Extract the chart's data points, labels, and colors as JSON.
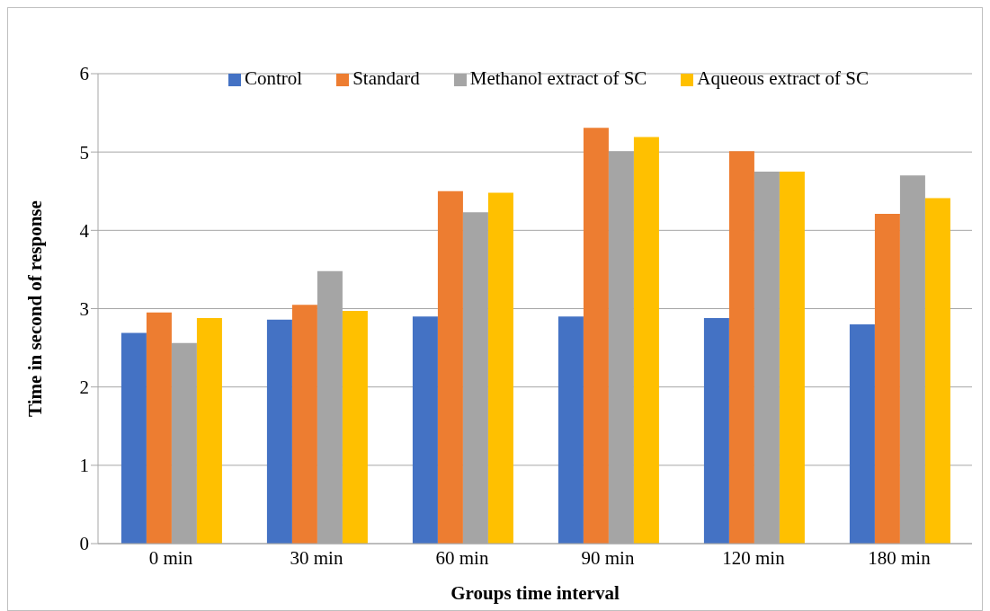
{
  "chart_data": {
    "type": "bar",
    "xlabel": "Groups time interval",
    "ylabel": "Time in second of response",
    "categories": [
      "0 min",
      "30 min",
      "60 min",
      "90 min",
      "120 min",
      "180 min"
    ],
    "series": [
      {
        "name": "Control",
        "color": "#4472c4",
        "values": [
          2.69,
          2.86,
          2.9,
          2.9,
          2.88,
          2.8
        ]
      },
      {
        "name": "Standard",
        "color": "#ed7d31",
        "values": [
          2.95,
          3.05,
          4.5,
          5.31,
          5.01,
          4.21
        ]
      },
      {
        "name": "Methanol extract of SC",
        "color": "#a5a5a5",
        "values": [
          2.56,
          3.48,
          4.23,
          5.01,
          4.75,
          4.7
        ]
      },
      {
        "name": "Aqueous extract of SC",
        "color": "#ffc000",
        "values": [
          2.88,
          2.97,
          4.48,
          5.19,
          4.75,
          4.41
        ]
      }
    ],
    "ylim": [
      0,
      6
    ],
    "yticks": [
      0,
      1,
      2,
      3,
      4,
      5,
      6
    ],
    "grid": "y",
    "legend": "top"
  }
}
